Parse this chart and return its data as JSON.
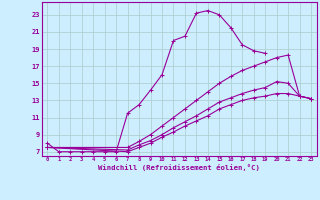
{
  "bg_color": "#cceeff",
  "grid_color": "#aacccc",
  "line_color": "#990099",
  "xlim": [
    -0.5,
    23.5
  ],
  "ylim": [
    6.5,
    24.5
  ],
  "xticks": [
    0,
    1,
    2,
    3,
    4,
    5,
    6,
    7,
    8,
    9,
    10,
    11,
    12,
    13,
    14,
    15,
    16,
    17,
    18,
    19,
    20,
    21,
    22,
    23
  ],
  "yticks": [
    7,
    9,
    11,
    13,
    15,
    17,
    19,
    21,
    23
  ],
  "xlabel": "Windchill (Refroidissement éolien,°C)",
  "line1_x": [
    0,
    1,
    2,
    3,
    4,
    5,
    6,
    7,
    8,
    9,
    10,
    11,
    12,
    13,
    14,
    15,
    16,
    17,
    18,
    19
  ],
  "line1_y": [
    8.0,
    7.0,
    7.0,
    7.0,
    7.0,
    7.0,
    7.0,
    11.5,
    12.5,
    14.2,
    16.0,
    20.0,
    20.5,
    23.2,
    23.5,
    23.0,
    21.5,
    19.5,
    18.8,
    18.5
  ],
  "line2_x": [
    0,
    7,
    8,
    9,
    10,
    11,
    12,
    13,
    14,
    15,
    16,
    17,
    18,
    19,
    20,
    21,
    22,
    23
  ],
  "line2_y": [
    7.5,
    7.5,
    8.2,
    9.0,
    10.0,
    11.0,
    12.0,
    13.0,
    14.0,
    15.0,
    15.8,
    16.5,
    17.0,
    17.5,
    18.0,
    18.3,
    13.5,
    13.2
  ],
  "line3_x": [
    0,
    7,
    8,
    9,
    10,
    11,
    12,
    13,
    14,
    15,
    16,
    17,
    18,
    19,
    20,
    21,
    22,
    23
  ],
  "line3_y": [
    7.5,
    7.2,
    7.8,
    8.3,
    9.0,
    9.8,
    10.5,
    11.2,
    12.0,
    12.8,
    13.3,
    13.8,
    14.2,
    14.5,
    15.2,
    15.0,
    13.5,
    13.2
  ],
  "line4_x": [
    0,
    7,
    8,
    9,
    10,
    11,
    12,
    13,
    14,
    15,
    16,
    17,
    18,
    19,
    20,
    21,
    22,
    23
  ],
  "line4_y": [
    7.5,
    7.0,
    7.5,
    8.0,
    8.7,
    9.3,
    10.0,
    10.6,
    11.2,
    12.0,
    12.5,
    13.0,
    13.3,
    13.5,
    13.8,
    13.8,
    13.5,
    13.2
  ]
}
